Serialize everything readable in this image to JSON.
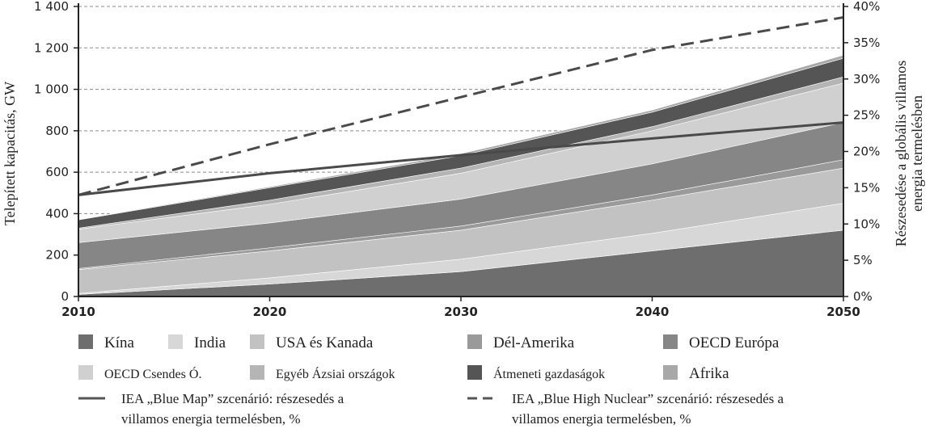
{
  "chart_data": {
    "type": "area",
    "x": [
      2010,
      2020,
      2030,
      2040,
      2050
    ],
    "xlim": [
      2010,
      2050
    ],
    "ylim": [
      0,
      1400
    ],
    "ylabel": "Telepített kapacitás, GW",
    "y2label": [
      "Részesedése a globális villamos",
      "energia termelésben"
    ],
    "y2lim": [
      0,
      40
    ],
    "y_ticks": [
      0,
      200,
      400,
      600,
      800,
      1000,
      1200,
      1400
    ],
    "y_tick_labels": [
      "0",
      "200",
      "400",
      "600",
      "800",
      "1 000",
      "1 200",
      "1 400"
    ],
    "y2_ticks": [
      0,
      5,
      10,
      15,
      20,
      25,
      30,
      35,
      40
    ],
    "y2_tick_labels": [
      "0%",
      "5%",
      "10%",
      "15%",
      "20%",
      "25%",
      "30%",
      "35%",
      "40%"
    ],
    "x_tick_labels": [
      "2010",
      "2020",
      "2030",
      "2040",
      "2050"
    ],
    "grid": true,
    "series": [
      {
        "name": "Kína",
        "values": [
          10,
          60,
          120,
          220,
          320
        ],
        "color": "#6e6e6e"
      },
      {
        "name": "India",
        "values": [
          5,
          30,
          60,
          85,
          130
        ],
        "color": "#d7d7d7"
      },
      {
        "name": "USA és Kanada",
        "values": [
          115,
          130,
          140,
          160,
          170
        ],
        "color": "#c2c2c2"
      },
      {
        "name": "Dél-Amerika",
        "values": [
          5,
          15,
          20,
          25,
          40
        ],
        "color": "#9a9a9a"
      },
      {
        "name": "OECD Európa",
        "values": [
          125,
          120,
          130,
          150,
          180
        ],
        "color": "#868686"
      },
      {
        "name": "OECD Csendes Ó.",
        "values": [
          65,
          90,
          125,
          160,
          190
        ],
        "color": "#d0d0d0"
      },
      {
        "name": "Egyéb Ázsiai országok",
        "values": [
          5,
          20,
          25,
          20,
          30
        ],
        "color": "#b5b5b5"
      },
      {
        "name": "Átmeneti gazdaságok",
        "values": [
          40,
          60,
          60,
          70,
          90
        ],
        "color": "#555555"
      },
      {
        "name": "Afrika",
        "values": [
          2,
          5,
          10,
          10,
          15
        ],
        "color": "#a8a8a8"
      }
    ],
    "lines": [
      {
        "name": "IEA „Blue Map” szcenárió: részesedés a villamos energia termelésben, %",
        "axis": "right",
        "style": "solid",
        "values": [
          14,
          17,
          19.5,
          21.8,
          24
        ]
      },
      {
        "name": "IEA „Blue High Nuclear” szcenárió: részesedés a villamos energia termelésben, %",
        "axis": "right",
        "style": "dashed",
        "values": [
          14,
          21,
          27.5,
          34,
          38.5
        ]
      }
    ],
    "legend": {
      "placement": "bottom",
      "area_labels": [
        "Kína",
        "India",
        "USA és Kanada",
        "Dél-Amerika",
        "OECD Európa",
        "OECD Csendes Ó.",
        "Egyéb Ázsiai országok",
        "Átmeneti gazdaságok",
        "Afrika"
      ],
      "line1": [
        "IEA „Blue Map” szcenárió: részesedés a",
        "villamos energia termelésben, %"
      ],
      "line2": [
        "IEA „Blue High Nuclear” szcenárió: részesedés a",
        "villamos energia termelésben, %"
      ]
    }
  }
}
